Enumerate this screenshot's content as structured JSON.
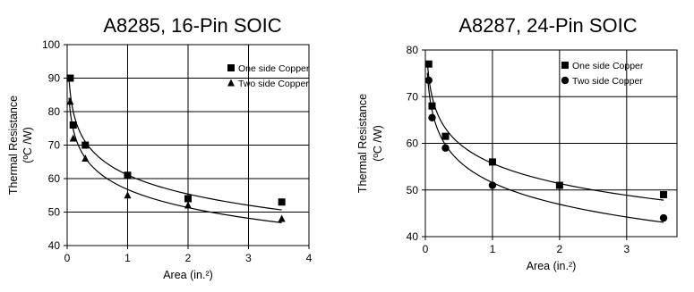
{
  "chart_data": [
    {
      "type": "scatter",
      "title": "A8285, 16-Pin SOIC",
      "xlabel": "Area (in.²)",
      "ylabel": "Thermal Resistance",
      "ylabel_unit": "(ºC /W)",
      "xlim": [
        0,
        4
      ],
      "ylim": [
        40,
        100
      ],
      "xticks": [
        "0",
        "1",
        "2",
        "3",
        "4"
      ],
      "yticks": [
        "40",
        "50",
        "60",
        "70",
        "80",
        "90",
        "100"
      ],
      "grid": true,
      "legend": "top-right",
      "series": [
        {
          "name": "One side Copper",
          "marker": "square",
          "x": [
            0.05,
            0.1,
            0.3,
            1.0,
            2.0,
            3.55
          ],
          "y": [
            90,
            76,
            70,
            61,
            54,
            53
          ]
        },
        {
          "name": "Two side Copper",
          "marker": "triangle",
          "x": [
            0.05,
            0.1,
            0.3,
            1.0,
            2.0,
            3.55
          ],
          "y": [
            83,
            72,
            66,
            55,
            52,
            48
          ]
        }
      ]
    },
    {
      "type": "scatter",
      "title": "A8287, 24-Pin SOIC",
      "xlabel": "Area (in.²)",
      "ylabel": "Thermal Resistance",
      "ylabel_unit": "(ºC /W)",
      "xlim": [
        0,
        3.75
      ],
      "ylim": [
        40,
        80
      ],
      "xticks": [
        "0",
        "1",
        "2",
        "3"
      ],
      "yticks": [
        "40",
        "50",
        "60",
        "70",
        "80"
      ],
      "grid": true,
      "legend": "top-right",
      "series": [
        {
          "name": "One side Copper",
          "marker": "square",
          "x": [
            0.05,
            0.1,
            0.3,
            1.0,
            2.0,
            3.55
          ],
          "y": [
            77,
            68,
            61.5,
            56,
            51,
            49
          ]
        },
        {
          "name": "Two side Copper",
          "marker": "circle",
          "x": [
            0.05,
            0.1,
            0.3,
            1.0,
            3.55
          ],
          "y": [
            73.5,
            65.5,
            59,
            51,
            44
          ]
        }
      ]
    }
  ]
}
